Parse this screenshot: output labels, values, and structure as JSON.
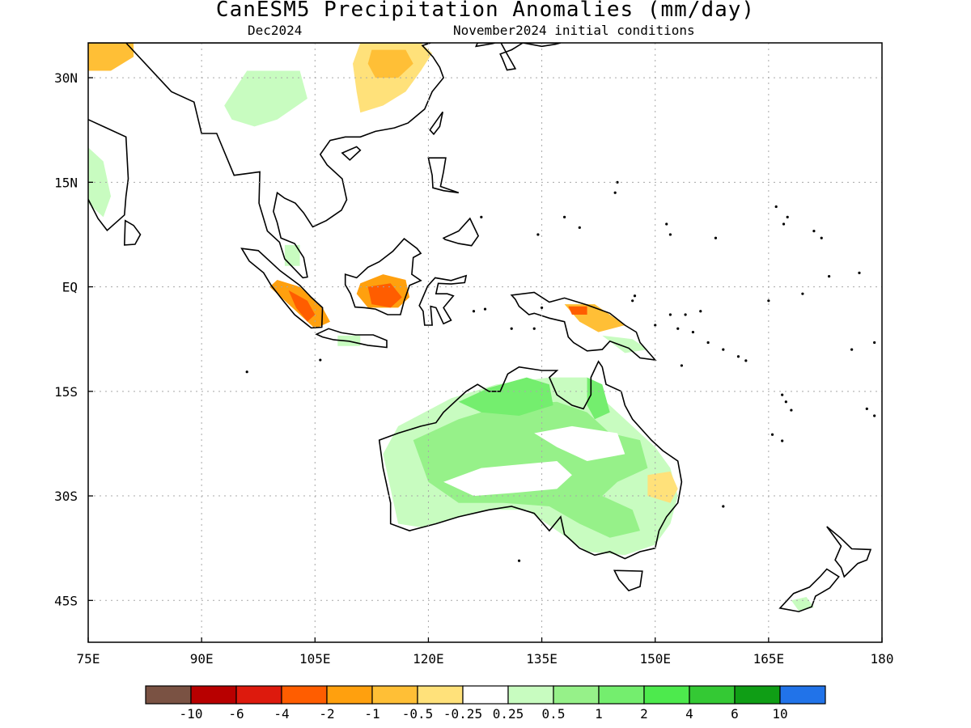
{
  "title": "CanESM5 Precipitation Anomalies (mm/day)",
  "subtitle_left": "Dec2024",
  "subtitle_right": "November2024 initial conditions",
  "map": {
    "lon_range": [
      75,
      180
    ],
    "lat_range": [
      -51,
      35
    ],
    "lon_ticks": [
      {
        "value": 75,
        "label": "75E"
      },
      {
        "value": 90,
        "label": "90E"
      },
      {
        "value": 105,
        "label": "105E"
      },
      {
        "value": 120,
        "label": "120E"
      },
      {
        "value": 135,
        "label": "135E"
      },
      {
        "value": 150,
        "label": "150E"
      },
      {
        "value": 165,
        "label": "165E"
      },
      {
        "value": 180,
        "label": "180"
      }
    ],
    "lat_ticks": [
      {
        "value": 30,
        "label": "30N"
      },
      {
        "value": 15,
        "label": "15N"
      },
      {
        "value": 0,
        "label": "EQ"
      },
      {
        "value": -15,
        "label": "15S"
      },
      {
        "value": -30,
        "label": "30S"
      },
      {
        "value": -45,
        "label": "45S"
      }
    ],
    "grid": true
  },
  "colorbar": {
    "colors": [
      "#7a5243",
      "#b80000",
      "#dd1a0d",
      "#ff5d00",
      "#ffa00e",
      "#ffbf36",
      "#ffe17a",
      "#ffffff",
      "#c8fcc0",
      "#96f189",
      "#74ee6e",
      "#4dea4d",
      "#34c934",
      "#0f9e15",
      "#2173e9"
    ],
    "labels": [
      "-10",
      "-6",
      "-4",
      "-2",
      "-1",
      "-0.5",
      "-0.25",
      "0.25",
      "0.5",
      "1",
      "2",
      "4",
      "6",
      "10"
    ]
  },
  "anomaly_regions": [
    {
      "name": "tibet-dry",
      "level": 6,
      "points": [
        [
          111,
          35
        ],
        [
          119,
          35
        ],
        [
          120.5,
          33.5
        ],
        [
          119,
          31
        ],
        [
          117,
          28
        ],
        [
          114,
          26
        ],
        [
          111,
          25
        ],
        [
          110.5,
          28
        ],
        [
          110,
          32
        ]
      ]
    },
    {
      "name": "tibet-dry-core",
      "level": 5,
      "points": [
        [
          112.5,
          34
        ],
        [
          117,
          34
        ],
        [
          118,
          32
        ],
        [
          116,
          30
        ],
        [
          113,
          30
        ],
        [
          112,
          32
        ]
      ]
    },
    {
      "name": "south-china-wet",
      "level": 8,
      "points": [
        [
          96,
          31
        ],
        [
          103,
          31
        ],
        [
          104,
          27
        ],
        [
          100,
          24
        ],
        [
          97,
          23
        ],
        [
          94,
          24
        ],
        [
          93,
          26
        ]
      ]
    },
    {
      "name": "india-wet",
      "level": 8,
      "points": [
        [
          75,
          20
        ],
        [
          77,
          18
        ],
        [
          78,
          13
        ],
        [
          77,
          10
        ],
        [
          75,
          12
        ]
      ]
    },
    {
      "name": "southwest-dry",
      "level": 5,
      "points": [
        [
          75,
          35
        ],
        [
          81,
          35
        ],
        [
          81,
          33
        ],
        [
          78,
          31
        ],
        [
          75,
          31
        ]
      ]
    },
    {
      "name": "sumatra-dry",
      "level": 4,
      "points": [
        [
          100,
          1
        ],
        [
          103,
          0
        ],
        [
          106,
          -3
        ],
        [
          107,
          -5
        ],
        [
          105,
          -6
        ],
        [
          102,
          -3
        ],
        [
          99,
          0
        ]
      ]
    },
    {
      "name": "sumatra-core",
      "level": 3,
      "points": [
        [
          101.5,
          -0.5
        ],
        [
          104,
          -2
        ],
        [
          105,
          -4
        ],
        [
          104,
          -5
        ],
        [
          102.5,
          -3
        ]
      ]
    },
    {
      "name": "borneo-dry",
      "level": 4,
      "points": [
        [
          111,
          0.5
        ],
        [
          114,
          1.8
        ],
        [
          117,
          1
        ],
        [
          117.5,
          -1.5
        ],
        [
          116,
          -3
        ],
        [
          112,
          -3
        ],
        [
          110.5,
          -1
        ]
      ]
    },
    {
      "name": "borneo-core",
      "level": 3,
      "points": [
        [
          112,
          0
        ],
        [
          115,
          0.5
        ],
        [
          116.5,
          -1.5
        ],
        [
          115,
          -3
        ],
        [
          112.5,
          -2.5
        ]
      ]
    },
    {
      "name": "png-dry",
      "level": 5,
      "points": [
        [
          138,
          -2.5
        ],
        [
          142,
          -2.5
        ],
        [
          146,
          -5.5
        ],
        [
          142.5,
          -6.5
        ],
        [
          140,
          -5
        ]
      ]
    },
    {
      "name": "png-core",
      "level": 3,
      "points": [
        [
          138.5,
          -2.8
        ],
        [
          141,
          -2.8
        ],
        [
          141,
          -4
        ],
        [
          139,
          -4
        ]
      ]
    },
    {
      "name": "png-wet",
      "level": 8,
      "points": [
        [
          143,
          -7
        ],
        [
          147,
          -7.5
        ],
        [
          149,
          -9
        ],
        [
          146,
          -9.5
        ]
      ]
    },
    {
      "name": "australia-wet",
      "level": 8,
      "points": [
        [
          116,
          -20
        ],
        [
          123,
          -16
        ],
        [
          129,
          -14
        ],
        [
          136,
          -13
        ],
        [
          141,
          -13
        ],
        [
          143,
          -16
        ],
        [
          146,
          -19
        ],
        [
          150,
          -23
        ],
        [
          152,
          -26
        ],
        [
          153,
          -30
        ],
        [
          152,
          -34
        ],
        [
          150,
          -37
        ],
        [
          146,
          -38.5
        ],
        [
          141,
          -38
        ],
        [
          137,
          -35
        ],
        [
          133,
          -32
        ],
        [
          128,
          -32
        ],
        [
          124,
          -33
        ],
        [
          119,
          -34.5
        ],
        [
          116,
          -34
        ],
        [
          115,
          -29
        ],
        [
          114,
          -24
        ]
      ]
    },
    {
      "name": "australia-wet-mid",
      "level": 9,
      "points": [
        [
          118,
          -22
        ],
        [
          124,
          -19
        ],
        [
          130,
          -17
        ],
        [
          137,
          -16.5
        ],
        [
          141,
          -18
        ],
        [
          144,
          -21
        ],
        [
          148,
          -22
        ],
        [
          149,
          -26
        ],
        [
          145,
          -28
        ],
        [
          143,
          -30
        ],
        [
          147,
          -32
        ],
        [
          148,
          -35
        ],
        [
          144,
          -36
        ],
        [
          140,
          -34
        ],
        [
          136,
          -31.5
        ],
        [
          130,
          -31
        ],
        [
          124,
          -31
        ],
        [
          120,
          -28
        ]
      ]
    },
    {
      "name": "australia-north-wet",
      "level": 10,
      "points": [
        [
          124,
          -16.5
        ],
        [
          128,
          -14.5
        ],
        [
          133,
          -13
        ],
        [
          136,
          -14
        ],
        [
          136.5,
          -17
        ],
        [
          132,
          -18.5
        ],
        [
          127,
          -18
        ]
      ]
    },
    {
      "name": "cape-york-wet",
      "level": 10,
      "points": [
        [
          141,
          -13
        ],
        [
          143,
          -14
        ],
        [
          144,
          -18
        ],
        [
          142,
          -19
        ],
        [
          141,
          -17
        ]
      ]
    },
    {
      "name": "australia-dry-center",
      "level": 7,
      "points": [
        [
          122,
          -28
        ],
        [
          127,
          -26
        ],
        [
          132,
          -25.5
        ],
        [
          137,
          -25
        ],
        [
          139,
          -27
        ],
        [
          137,
          -29
        ],
        [
          132,
          -29.5
        ],
        [
          126,
          -30
        ]
      ]
    },
    {
      "name": "australia-dry-interior",
      "level": 7,
      "points": [
        [
          134,
          -21
        ],
        [
          139,
          -20
        ],
        [
          145,
          -21
        ],
        [
          146,
          -24
        ],
        [
          141,
          -25
        ],
        [
          137,
          -23
        ]
      ]
    },
    {
      "name": "queensland-dry",
      "level": 6,
      "points": [
        [
          149,
          -27
        ],
        [
          152,
          -26.5
        ],
        [
          153,
          -29
        ],
        [
          152,
          -31
        ],
        [
          149,
          -30
        ]
      ]
    },
    {
      "name": "nz-wet",
      "level": 8,
      "points": [
        [
          168,
          -45
        ],
        [
          170,
          -44.5
        ],
        [
          171,
          -46
        ],
        [
          169,
          -46.5
        ]
      ]
    },
    {
      "name": "java-wet",
      "level": 8,
      "points": [
        [
          108,
          -7
        ],
        [
          111,
          -7
        ],
        [
          111,
          -8.5
        ],
        [
          108,
          -8.5
        ]
      ]
    },
    {
      "name": "malaya-wet",
      "level": 8,
      "points": [
        [
          101,
          6
        ],
        [
          103,
          6
        ],
        [
          103,
          3
        ],
        [
          101,
          3
        ]
      ]
    }
  ]
}
